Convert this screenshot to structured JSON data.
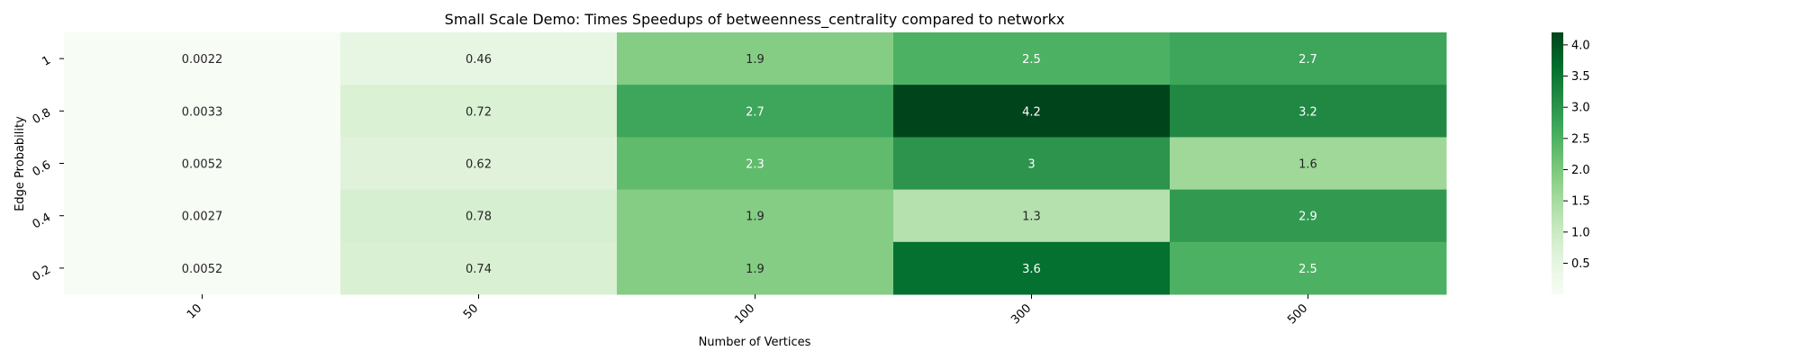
{
  "chart_data": {
    "type": "heatmap",
    "title": "Small Scale Demo: Times Speedups of betweenness_centrality compared to networkx",
    "xlabel": "Number of Vertices",
    "ylabel": "Edge Probability",
    "x_categories": [
      "10",
      "50",
      "100",
      "300",
      "500"
    ],
    "y_categories": [
      "1",
      "0.8",
      "0.6",
      "0.4",
      "0.2"
    ],
    "values": [
      [
        0.0022,
        0.46,
        1.9,
        2.5,
        2.7
      ],
      [
        0.0033,
        0.72,
        2.7,
        4.2,
        3.2
      ],
      [
        0.0052,
        0.62,
        2.3,
        3,
        1.6
      ],
      [
        0.0027,
        0.78,
        1.9,
        1.3,
        2.9
      ],
      [
        0.0052,
        0.74,
        1.9,
        3.6,
        2.5
      ]
    ],
    "colormap": "Greens",
    "colorbar": {
      "range": [
        0.0022,
        4.2
      ],
      "ticks": [
        0.5,
        1.0,
        1.5,
        2.0,
        2.5,
        3.0,
        3.5,
        4.0
      ],
      "tick_labels": [
        "0.5",
        "1.0",
        "1.5",
        "2.0",
        "2.5",
        "3.0",
        "3.5",
        "4.0"
      ]
    },
    "annotations": true,
    "grid": false
  }
}
